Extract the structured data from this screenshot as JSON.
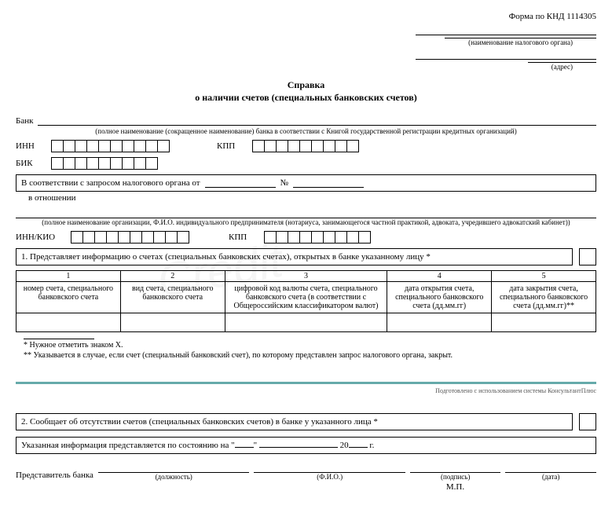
{
  "header": {
    "form_code": "Форма по КНД 1114305",
    "tax_authority_caption": "(наименование налогового органа)",
    "address_caption": "(адрес)"
  },
  "title_line1": "Справка",
  "title_line2": "о наличии счетов (специальных банковских счетов)",
  "bank_label": "Банк",
  "bank_caption": "(полное наименование (сокращенное наименование) банка в соответствии с Книгой государственной регистрации кредитных организаций)",
  "codes": {
    "inn_label": "ИНН",
    "kpp_label": "КПП",
    "bik_label": "БИК",
    "inn_boxes": 10,
    "kpp_boxes": 9,
    "bik_boxes": 9
  },
  "request": {
    "text_from": "В соответствии с запросом налогового органа от",
    "num_label": "№",
    "regarding": "в отношении"
  },
  "org_caption": "(полное наименование организации, Ф.И.О. индивидуального предпринимателя (нотариуса, занимающегося частной практикой, адвоката, учредившего адвокатский кабинет))",
  "innkio_label": "ИНН/КИО",
  "innkio_boxes": 10,
  "kpp2_label": "КПП",
  "kpp2_boxes": 9,
  "section1": "1. Представляет информацию о счетах (специальных банковских счетах), открытых в банке указанному лицу *",
  "table": {
    "numbers": [
      "1",
      "2",
      "3",
      "4",
      "5"
    ],
    "headers": [
      "номер счета, специального банковского счета",
      "вид счета, специального банковского счета",
      "цифровой код валюты счета, специального банковского счета (в соответствии с Общероссийским классификатором валют)",
      "дата открытия счета, специального банковского счета (дд.мм.гг)",
      "дата закрытия счета, специального банковского счета (дд.мм.гг)**"
    ],
    "col_widths": [
      "18%",
      "18%",
      "28%",
      "18%",
      "18%"
    ]
  },
  "footnote1": "* Нужное отметить знаком X.",
  "footnote2": "** Указывается в случае, если счет (специальный банковский счет), по которому представлен запрос налогового органа, закрыт.",
  "consultant": "Подготовлено с использованием системы КонсультантПлюс",
  "section2": "2. Сообщает об отсутствии счетов (специальных банковских счетов) в банке у указанного лица *",
  "date_sentence": {
    "prefix": "Указанная информация представляется по состоянию на \"",
    "mid1": "\" ",
    "year_prefix": " 20",
    "suffix": " г."
  },
  "signature": {
    "rep_label": "Представитель банка",
    "position_cap": "(должность)",
    "fio_cap": "(Ф.И.О.)",
    "sign_cap": "(подпись)",
    "date_cap": "(дата)",
    "mp": "М.П."
  },
  "colors": {
    "divider": "#6fb5b5"
  }
}
